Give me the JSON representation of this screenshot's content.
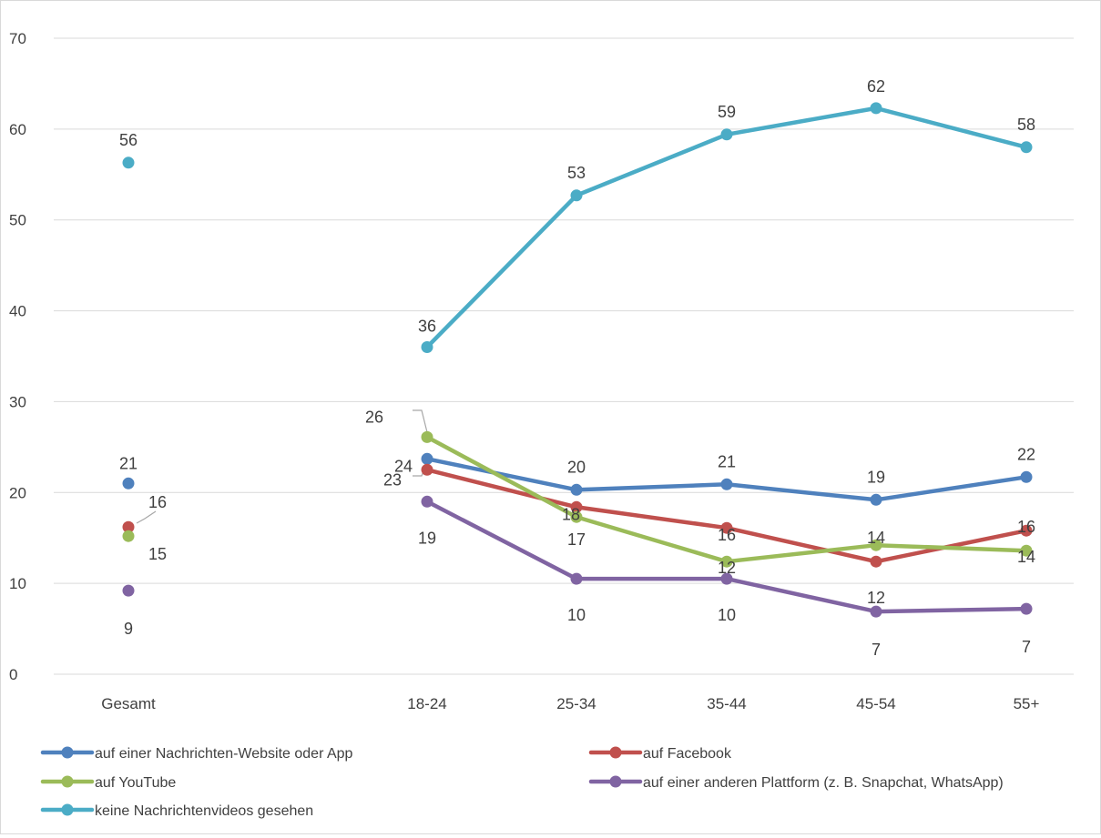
{
  "chart_data": {
    "type": "line",
    "title": "",
    "xlabel": "",
    "ylabel": "",
    "categories": [
      "Gesamt",
      "",
      "18-24",
      "25-34",
      "35-44",
      "45-54",
      "55+"
    ],
    "ylim": [
      0,
      70
    ],
    "yticks": [
      0,
      10,
      20,
      30,
      40,
      50,
      60,
      70
    ],
    "grid": true,
    "legend_position": "bottom",
    "series": [
      {
        "name": "auf einer Nachrichten-Website oder App",
        "color": "#4f81bd",
        "values": [
          21,
          null,
          23.7,
          20.3,
          20.9,
          19.2,
          21.7
        ],
        "labels": [
          "21",
          null,
          "24",
          "20",
          "21",
          "19",
          "22"
        ]
      },
      {
        "name": "auf Facebook",
        "color": "#c0504d",
        "values": [
          16.2,
          null,
          22.5,
          18.4,
          16.1,
          12.4,
          15.8
        ],
        "labels": [
          "16",
          null,
          "23",
          "18",
          "16",
          "12",
          "16"
        ]
      },
      {
        "name": "auf YouTube",
        "color": "#9bbb59",
        "values": [
          15.2,
          null,
          26.1,
          17.3,
          12.4,
          14.2,
          13.6
        ],
        "labels": [
          "15",
          null,
          "26",
          "17",
          "12",
          "14",
          "14"
        ]
      },
      {
        "name": "auf einer anderen Plattform (z. B. Snapchat, WhatsApp)",
        "color": "#8064a2",
        "values": [
          9.2,
          null,
          19,
          10.5,
          10.5,
          6.9,
          7.2
        ],
        "labels": [
          "9",
          null,
          "19",
          "10",
          "10",
          "7",
          "7"
        ]
      },
      {
        "name": "keine Nachrichtenvideos gesehen",
        "color": "#4bacc6",
        "values": [
          56.3,
          null,
          36,
          52.7,
          59.4,
          62.3,
          58
        ],
        "labels": [
          "56",
          null,
          "36",
          "53",
          "59",
          "62",
          "58"
        ]
      }
    ]
  }
}
